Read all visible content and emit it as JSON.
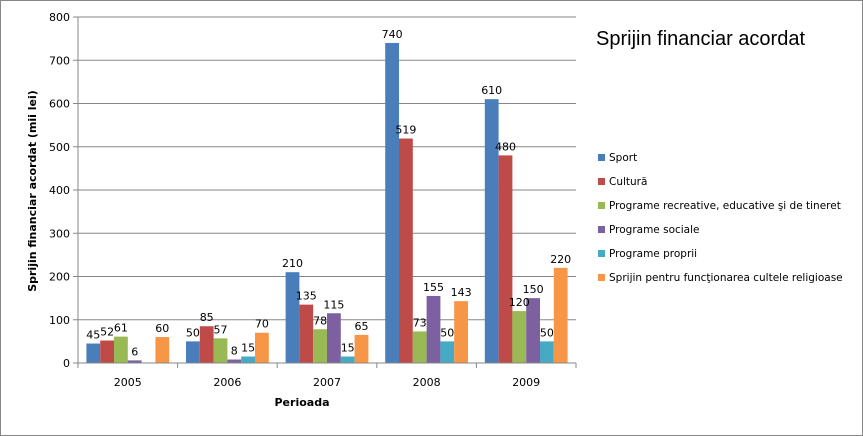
{
  "chart_data": {
    "type": "bar",
    "title": "Sprijin financiar acordat",
    "xlabel": "Perioada",
    "ylabel": "Sprijin financiar acordat (mii lei)",
    "ylim": [
      0,
      800
    ],
    "yticks": [
      0,
      100,
      200,
      300,
      400,
      500,
      600,
      700,
      800
    ],
    "categories": [
      "2005",
      "2006",
      "2007",
      "2008",
      "2009"
    ],
    "legend_position": "right",
    "grid": true,
    "series": [
      {
        "name": "Sport",
        "color": "#4A7EBB",
        "values": [
          45,
          50,
          210,
          740,
          610
        ]
      },
      {
        "name": "Cultură",
        "color": "#BE4B48",
        "values": [
          52,
          85,
          135,
          519,
          480
        ]
      },
      {
        "name": "Programe recreative, educative şi de tineret",
        "color": "#98B954",
        "values": [
          61,
          57,
          78,
          73,
          120
        ]
      },
      {
        "name": "Programe sociale",
        "color": "#7D60A0",
        "values": [
          6,
          8,
          115,
          155,
          150
        ]
      },
      {
        "name": "Programe proprii",
        "color": "#46AAC5",
        "values": [
          null,
          15,
          15,
          50,
          50
        ]
      },
      {
        "name": "Sprijin pentru funcţionarea cultele religioase",
        "color": "#F79646",
        "values": [
          60,
          70,
          65,
          143,
          220
        ]
      }
    ]
  }
}
